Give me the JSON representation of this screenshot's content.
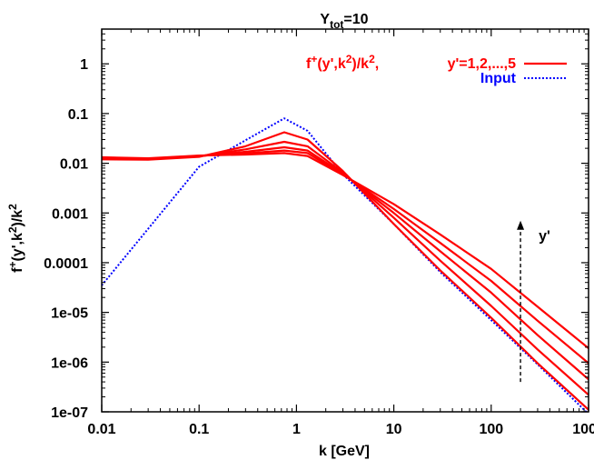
{
  "chart_data": {
    "type": "line",
    "title": {
      "main": "Y",
      "sub": "tot",
      "rest": "=10"
    },
    "xlabel": "k [GeV]",
    "ylabel": {
      "p1": "f",
      "sup1": "+",
      "p2": "(y',k",
      "sup2": "2",
      "p3": ")/k",
      "sup3": "2"
    },
    "xscale": "log",
    "yscale": "log",
    "xlim": [
      0.01,
      1000
    ],
    "ylim": [
      1e-07,
      5
    ],
    "x_ticks": [
      {
        "value": 0.01,
        "label": "0.01"
      },
      {
        "value": 0.1,
        "label": "0.1"
      },
      {
        "value": 1,
        "label": "1"
      },
      {
        "value": 10,
        "label": "10"
      },
      {
        "value": 100,
        "label": "100"
      },
      {
        "value": 1000,
        "label": "1000"
      }
    ],
    "y_ticks": [
      {
        "value": 1e-07,
        "label": "1e-07"
      },
      {
        "value": 1e-06,
        "label": "1e-06"
      },
      {
        "value": 1e-05,
        "label": "1e-05"
      },
      {
        "value": 0.0001,
        "label": "0.0001"
      },
      {
        "value": 0.001,
        "label": "0.001"
      },
      {
        "value": 0.01,
        "label": "0.01"
      },
      {
        "value": 0.1,
        "label": "0.1"
      },
      {
        "value": 1,
        "label": "1"
      }
    ],
    "grid": false,
    "legend_position": "top-right",
    "legend": [
      {
        "label_left": {
          "p1": "f",
          "sup1": "+",
          "p2": "(y',k",
          "sup2": "2",
          "p3": ")/k",
          "sup3": "2",
          "p4": ","
        },
        "label_right": "y'=1,2,...,5",
        "color": "#ff0000",
        "style": "solid"
      },
      {
        "label": "Input",
        "color": "#0000ff",
        "style": "dotted"
      }
    ],
    "annotation": {
      "label": "y'",
      "x": 200,
      "y_from": 4e-07,
      "y_to": 0.0007
    },
    "series": [
      {
        "name": "Input",
        "color": "#0000ff",
        "style": "dotted",
        "x": [
          0.01,
          0.1,
          0.4,
          0.75,
          1.3,
          3,
          10,
          30,
          100,
          300,
          1000
        ],
        "y": [
          3.5e-05,
          0.0085,
          0.04,
          0.08,
          0.045,
          0.006,
          0.0006,
          6.5e-05,
          7e-06,
          9e-07,
          9e-08
        ]
      },
      {
        "color": "#ff0000",
        "style": "solid",
        "x": [
          0.01,
          0.03,
          0.1,
          0.3,
          0.75,
          1.3,
          3,
          10,
          30,
          100,
          300,
          1000
        ],
        "y": [
          0.012,
          0.0118,
          0.0135,
          0.022,
          0.042,
          0.03,
          0.007,
          0.0006,
          7e-05,
          7.8e-06,
          9.5e-07,
          1.1e-07
        ]
      },
      {
        "color": "#ff0000",
        "style": "solid",
        "x": [
          0.01,
          0.03,
          0.1,
          0.3,
          0.75,
          1.3,
          3,
          10,
          30,
          100,
          300,
          1000
        ],
        "y": [
          0.0123,
          0.012,
          0.0137,
          0.019,
          0.027,
          0.022,
          0.0065,
          0.0008,
          0.00011,
          1.35e-05,
          1.8e-06,
          2.2e-07
        ]
      },
      {
        "color": "#ff0000",
        "style": "solid",
        "x": [
          0.01,
          0.03,
          0.1,
          0.3,
          0.75,
          1.3,
          3,
          10,
          30,
          100,
          300,
          1000
        ],
        "y": [
          0.0126,
          0.0122,
          0.0139,
          0.017,
          0.021,
          0.018,
          0.0062,
          0.001,
          0.00017,
          2.5e-05,
          3.5e-06,
          4.5e-07
        ]
      },
      {
        "color": "#ff0000",
        "style": "solid",
        "x": [
          0.01,
          0.03,
          0.1,
          0.3,
          0.75,
          1.3,
          3,
          10,
          30,
          100,
          300,
          1000
        ],
        "y": [
          0.0129,
          0.0124,
          0.0141,
          0.0158,
          0.018,
          0.016,
          0.006,
          0.0012,
          0.00025,
          4.3e-05,
          6.8e-06,
          9.5e-07
        ]
      },
      {
        "color": "#ff0000",
        "style": "solid",
        "x": [
          0.01,
          0.03,
          0.1,
          0.3,
          0.75,
          1.3,
          3,
          10,
          30,
          100,
          300,
          1000
        ],
        "y": [
          0.0132,
          0.0126,
          0.0143,
          0.015,
          0.016,
          0.014,
          0.0058,
          0.0015,
          0.00037,
          7.5e-05,
          1.3e-05,
          1.9e-06
        ]
      }
    ]
  }
}
